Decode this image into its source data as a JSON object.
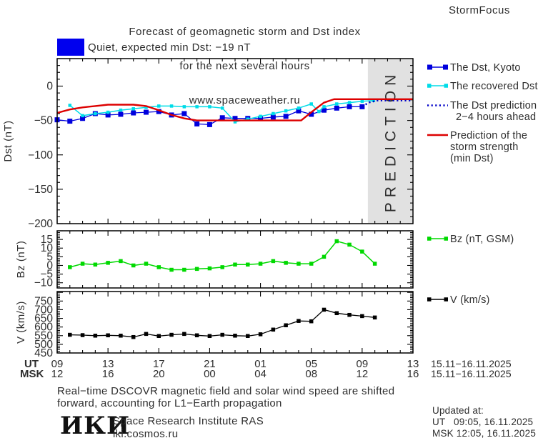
{
  "header": {
    "title_line1": "Forecast of geomagnetic storm and Dst index",
    "title_line2": "for the next several hours",
    "title_line3": "www.spaceweather.ru",
    "brand": "StormFocus"
  },
  "status": {
    "swatch_color": "#0000ee",
    "label": "Quiet, expected min Dst: −19 nT"
  },
  "prediction_band": {
    "label": "PREDICTION",
    "fill": "#e1e1e1",
    "text_color": "#c4c4c4",
    "x_start_hour": 24.45
  },
  "axes": {
    "x": {
      "ut_label": "UT",
      "msk_label": "MSK",
      "ut_hours": [
        "09",
        "13",
        "17",
        "21",
        "01",
        "05",
        "09",
        "13"
      ],
      "msk_hours": [
        "12",
        "16",
        "20",
        "00",
        "04",
        "08",
        "12",
        "16"
      ],
      "ut_date_range": "15.11−16.11.2025",
      "msk_date_range": "15.11−16.11.2025"
    }
  },
  "chart_data": [
    {
      "type": "line",
      "name": "dst-panel",
      "ylabel": "Dst (nT)",
      "ylim": [
        -200,
        40
      ],
      "yticks": [
        0,
        -50,
        -100,
        -150,
        -200
      ],
      "ytick_minor": 10,
      "ytick_major": 50,
      "xlim": [
        0,
        28
      ],
      "has_prediction_band": true,
      "series": [
        {
          "name": "The Dst, Kyoto",
          "color": "#0000dd",
          "marker_size": 7,
          "line_width": 1.3,
          "x": [
            0,
            1,
            2,
            3,
            4,
            5,
            6,
            7,
            8,
            9,
            10,
            11,
            12,
            13,
            14,
            15,
            16,
            17,
            18,
            19,
            20,
            21,
            22,
            23,
            24
          ],
          "values": [
            -49,
            -51,
            -47,
            -40,
            -42,
            -41,
            -39,
            -38,
            -37,
            -42,
            -40,
            -55,
            -56,
            -46,
            -47,
            -47,
            -47,
            -45,
            -44,
            -36,
            -41,
            -35,
            -32,
            -30,
            -30
          ]
        },
        {
          "name": "The recovered Dst",
          "color": "#00dce8",
          "marker_size": 4.5,
          "line_width": 1.5,
          "x": [
            1,
            2,
            3,
            4,
            5,
            6,
            7,
            8,
            9,
            10,
            11,
            12,
            13,
            14,
            15,
            16,
            17,
            18,
            19,
            20,
            20.6,
            21,
            22,
            23,
            24,
            24.9
          ],
          "values": [
            -28,
            -43,
            -40,
            -38,
            -35,
            -33,
            -31,
            -29,
            -29,
            -30,
            -30,
            -30,
            -32,
            -52,
            -48,
            -44,
            -40,
            -36,
            -32,
            -26,
            -37,
            -30,
            -26,
            -24,
            -22,
            -21
          ]
        },
        {
          "name": "The Dst prediction 2−4 hours ahead",
          "color": "#0000c8",
          "dotted": true,
          "line_width": 2.4,
          "x": [
            24,
            24.5,
            25.2,
            28
          ],
          "values": [
            -30,
            -24,
            -21,
            -21
          ]
        },
        {
          "name": "Prediction of the storm strength (min Dst)",
          "color": "#dd0000",
          "line_width": 2.4,
          "x": [
            0,
            1,
            2,
            3,
            4,
            5,
            6,
            7,
            8,
            9,
            10,
            11,
            19.2,
            20,
            21,
            21.8,
            28
          ],
          "values": [
            -39,
            -34,
            -31,
            -29,
            -27,
            -27,
            -27,
            -29,
            -35,
            -42,
            -47,
            -50,
            -50,
            -38,
            -24,
            -19,
            -19
          ]
        }
      ]
    },
    {
      "type": "line",
      "name": "bz-panel",
      "ylabel": "Bz (nT)",
      "ylim": [
        -13,
        20
      ],
      "yticks": [
        15,
        10,
        5,
        0,
        -5,
        -10
      ],
      "ytick_minor": 1,
      "ytick_major": 5,
      "xlim": [
        0,
        28
      ],
      "series": [
        {
          "name": "Bz (nT, GSM)",
          "color": "#00d900",
          "marker_size": 5.5,
          "line_width": 1.5,
          "x": [
            1,
            2,
            3,
            4,
            5,
            6,
            7,
            8,
            9,
            10,
            11,
            12,
            13,
            14,
            15,
            16,
            17,
            18,
            19,
            20,
            21,
            22,
            23,
            24,
            25
          ],
          "values": [
            -1,
            1,
            0.5,
            1.5,
            2.5,
            0,
            1,
            -1,
            -2.5,
            -2.5,
            -2,
            -1.7,
            -1,
            0.5,
            0.5,
            1,
            2.5,
            1.5,
            1,
            1,
            5,
            14,
            12,
            8,
            1
          ]
        }
      ]
    },
    {
      "type": "line",
      "name": "v-panel",
      "ylabel": "V (km/s)",
      "ylim": [
        450,
        805
      ],
      "yticks": [
        750,
        700,
        650,
        600,
        550,
        500,
        450
      ],
      "ytick_minor": 10,
      "ytick_major": 50,
      "xlim": [
        0,
        28
      ],
      "series": [
        {
          "name": "V (km/s)",
          "color": "#000000",
          "marker_size": 5.5,
          "line_width": 1.3,
          "x": [
            1,
            2,
            3,
            4,
            5,
            6,
            7,
            8,
            9,
            10,
            11,
            12,
            13,
            14,
            15,
            16,
            17,
            18,
            19,
            20,
            21,
            22,
            23,
            24,
            25
          ],
          "values": [
            555,
            553,
            550,
            552,
            550,
            542,
            560,
            548,
            555,
            560,
            552,
            548,
            555,
            550,
            548,
            558,
            585,
            610,
            635,
            633,
            700,
            680,
            670,
            663,
            655
          ]
        }
      ]
    }
  ],
  "legend": {
    "dst": [
      {
        "lines": [
          "The Dst, Kyoto"
        ],
        "color": "#0000dd",
        "style": "line-squares"
      },
      {
        "lines": [
          "The recovered Dst"
        ],
        "color": "#00dce8",
        "style": "line-squares"
      },
      {
        "lines": [
          "The Dst prediction",
          "2−4 hours ahead"
        ],
        "color": "#0000c8",
        "style": "dotted"
      },
      {
        "lines": [
          "Prediction of the",
          "storm strength",
          "(min Dst)"
        ],
        "color": "#dd0000",
        "style": "line"
      }
    ],
    "bz": {
      "lines": [
        "Bz (nT, GSM)"
      ],
      "color": "#00d900",
      "style": "line-squares"
    },
    "v": {
      "lines": [
        "V (km/s)"
      ],
      "color": "#000000",
      "style": "line-squares"
    }
  },
  "footer": {
    "note_line1": "Real−time DSCOVR magnetic field and solar wind speed are shifted",
    "note_line2": "forward, accounting for L1−Earth propagation",
    "logo_text": "ИКИ",
    "org_name": "Space Research Institute RAS",
    "org_site": "iki.cosmos.ru"
  },
  "updated": {
    "heading": "Updated at:",
    "ut_line": "UT   09:05, 16.11.2025",
    "msk_line": "MSK 12:05, 16.11.2025"
  }
}
